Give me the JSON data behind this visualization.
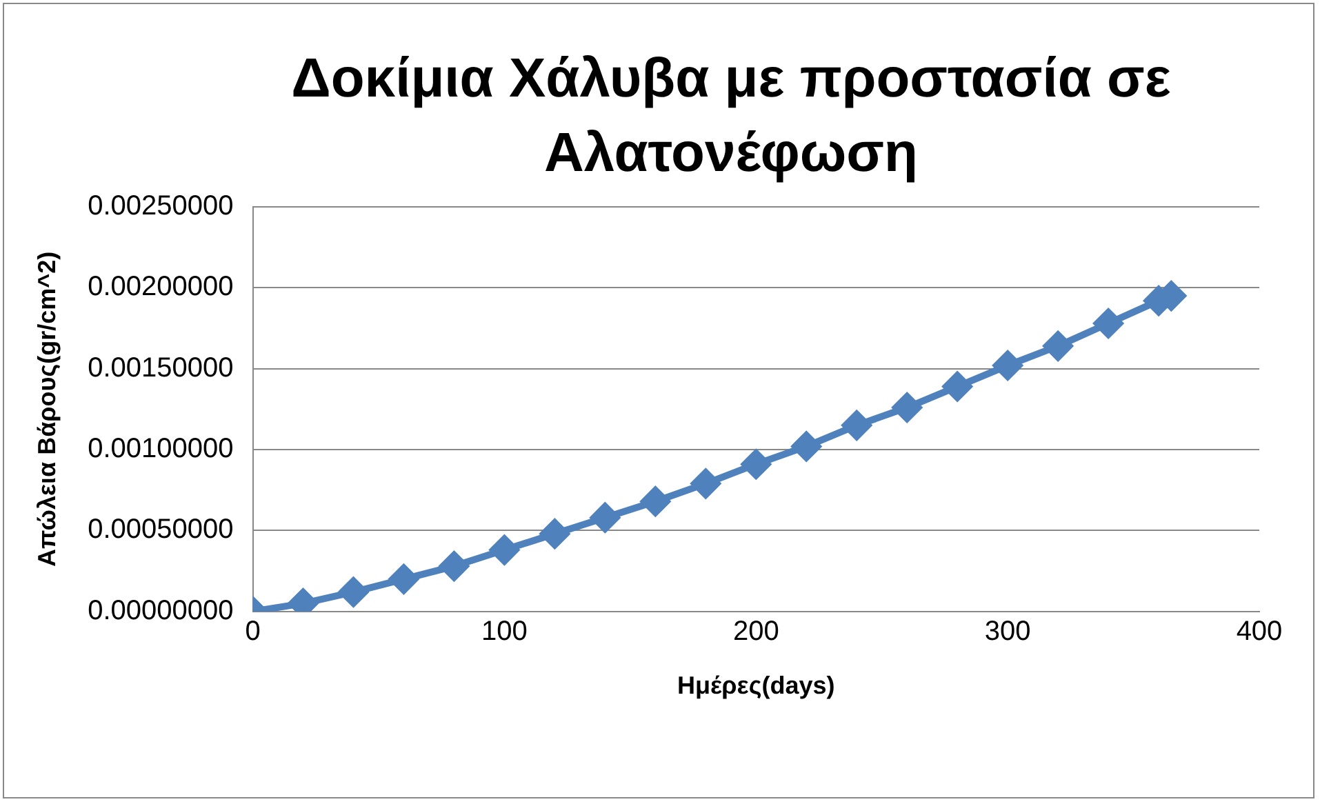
{
  "chart_data": {
    "type": "line",
    "title": "Δοκίμια Χάλυβα με προστασία σε Αλατονέφωση",
    "xlabel": "Ημέρες(days)",
    "ylabel": "Απώλεια Βάρους(gr/cm^2)",
    "x": [
      0,
      20,
      40,
      60,
      80,
      100,
      120,
      140,
      160,
      180,
      200,
      220,
      240,
      260,
      280,
      300,
      320,
      340,
      360,
      365
    ],
    "series": [
      {
        "color": "#4f81bd",
        "values": [
          0,
          5e-05,
          0.00012,
          0.0002,
          0.00028,
          0.00038,
          0.00048,
          0.00058,
          0.00068,
          0.00079,
          0.00091,
          0.00102,
          0.00115,
          0.00126,
          0.00139,
          0.00152,
          0.00164,
          0.00178,
          0.00192,
          0.00195
        ]
      }
    ],
    "xlim": [
      0,
      400
    ],
    "xticks": [
      0,
      100,
      200,
      300,
      400
    ],
    "ylim": [
      0,
      0.0025
    ],
    "yticks": [
      {
        "value": 0,
        "label": "0.00000000"
      },
      {
        "value": 0.0005,
        "label": "0.00050000"
      },
      {
        "value": 0.001,
        "label": "0.00100000"
      },
      {
        "value": 0.0015,
        "label": "0.00150000"
      },
      {
        "value": 0.002,
        "label": "0.00200000"
      },
      {
        "value": 0.0025,
        "label": "0.00250000"
      }
    ],
    "grid": "y",
    "legend": false,
    "marker": "diamond",
    "line_style": "solid"
  }
}
